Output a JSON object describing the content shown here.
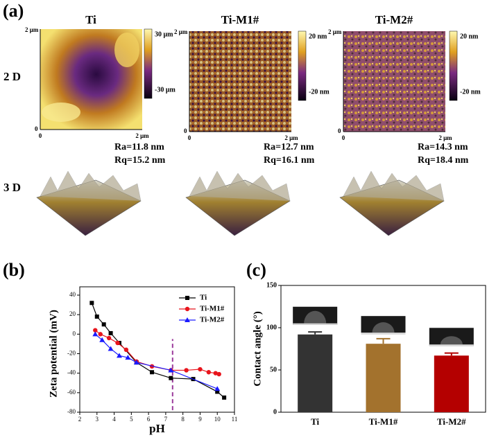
{
  "panel_a": {
    "label": "(a)",
    "row_labels": [
      "2 D",
      "3 D"
    ],
    "columns": [
      {
        "title": "Ti",
        "colorbar_max": "30 μm",
        "colorbar_min": "-30 μm",
        "axis_top": "2 μm",
        "axis_origin": "0",
        "axis_right": "2 μm",
        "ra": "Ra=11.8 nm",
        "rq": "Rq=15.2 nm"
      },
      {
        "title": "Ti-M1#",
        "colorbar_max": "20 nm",
        "colorbar_min": "-20 nm",
        "axis_top": "2 μm",
        "axis_origin": "0",
        "axis_right": "2 μm",
        "ra": "Ra=12.7 nm",
        "rq": "Rq=16.1 nm"
      },
      {
        "title": "Ti-M2#",
        "colorbar_max": "20 nm",
        "colorbar_min": "-20 nm",
        "axis_top": "2 μm",
        "axis_origin": "0",
        "axis_right": "2 μm",
        "ra": "Ra=14.3 nm",
        "rq": "Rq=18.4 nm"
      }
    ]
  },
  "chart_data": [
    {
      "type": "line",
      "panel_label": "(b)",
      "x_label": "pH",
      "y_label": "Zeta potential (mV)",
      "xlim": [
        2,
        11
      ],
      "xticks": [
        2,
        3,
        4,
        5,
        6,
        7,
        8,
        9,
        10,
        11
      ],
      "ylim": [
        -80,
        40
      ],
      "yticks": [
        -80,
        -60,
        -40,
        -20,
        0,
        20,
        40
      ],
      "legend": "top-right",
      "reference_line": {
        "x": 7.4,
        "y": [
          -78,
          -5
        ],
        "color": "#9b3a9b"
      },
      "series": [
        {
          "name": "Ti",
          "color": "#000000",
          "marker": "square",
          "x": [
            2.7,
            3.0,
            3.4,
            3.8,
            4.3,
            5.3,
            6.2,
            7.3,
            8.6,
            10.0,
            10.4
          ],
          "values": [
            32,
            18,
            10,
            1,
            -9,
            -29,
            -39,
            -45,
            -46,
            -59,
            -65
          ]
        },
        {
          "name": "Ti-M1#",
          "color": "#e8141c",
          "marker": "circle",
          "x": [
            2.9,
            3.2,
            3.7,
            4.2,
            4.7,
            5.3,
            6.2,
            7.3,
            8.2,
            9.0,
            9.5,
            9.9,
            10.1
          ],
          "values": [
            4,
            0,
            -4,
            -9,
            -16,
            -28,
            -33,
            -37,
            -37,
            -36,
            -39,
            -40,
            -41
          ]
        },
        {
          "name": "Ti-M2#",
          "color": "#1a1aff",
          "marker": "triangle",
          "x": [
            2.9,
            3.3,
            3.8,
            4.3,
            4.8,
            5.3,
            7.3,
            10.0
          ],
          "values": [
            0,
            -6,
            -15,
            -22,
            -24,
            -29,
            -37,
            -56
          ]
        }
      ]
    },
    {
      "type": "bar",
      "panel_label": "(c)",
      "y_label": "Contact angle (°)",
      "categories": [
        "Ti",
        "Ti-M1#",
        "Ti-M2#"
      ],
      "values": [
        92,
        81,
        67
      ],
      "errors": [
        3,
        6,
        3
      ],
      "colors": [
        "#333333",
        "#a3722d",
        "#b40000"
      ],
      "ylim": [
        0,
        150
      ],
      "yticks": [
        0,
        50,
        100,
        150
      ]
    }
  ]
}
